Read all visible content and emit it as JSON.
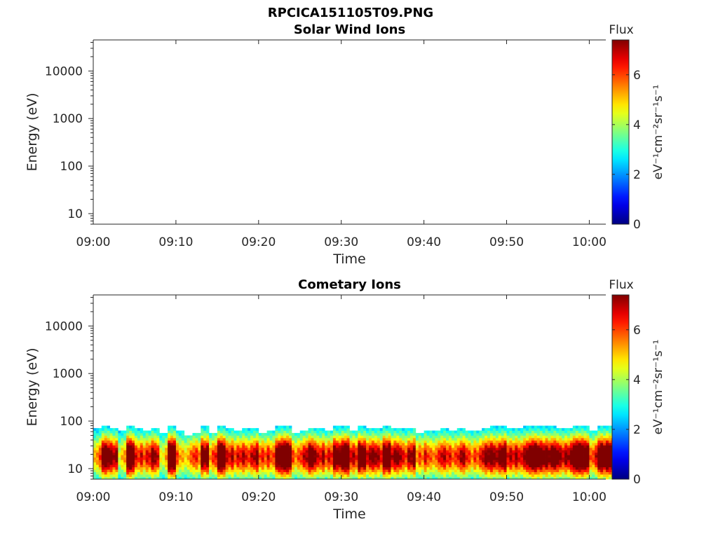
{
  "figure": {
    "title": "RPCICA151105T09.PNG"
  },
  "chart_data": [
    {
      "type": "heatmap",
      "title": "Solar Wind Ions",
      "xlabel": "Time",
      "ylabel": "Energy (eV)",
      "x_range": [
        "09:00",
        "10:02"
      ],
      "x_ticks": [
        "09:00",
        "09:10",
        "09:20",
        "09:30",
        "09:40",
        "09:50",
        "10:00"
      ],
      "y_scale": "log",
      "y_range": [
        6,
        45000
      ],
      "y_ticks": [
        {
          "value": 10,
          "label": "10"
        },
        {
          "value": 100,
          "label": "100"
        },
        {
          "value": 1000,
          "label": "1000"
        },
        {
          "value": 10000,
          "label": "10000"
        }
      ],
      "colorbar": {
        "title": "Flux",
        "label": "eV⁻¹cm⁻²sr⁻¹s⁻¹",
        "range": [
          0,
          7.4
        ],
        "ticks": [
          0,
          2,
          4,
          6
        ],
        "colormap": "jet"
      },
      "data": []
    },
    {
      "type": "heatmap",
      "title": "Cometary Ions",
      "xlabel": "Time",
      "ylabel": "Energy (eV)",
      "x_range": [
        "09:00",
        "10:02"
      ],
      "x_ticks": [
        "09:00",
        "09:10",
        "09:20",
        "09:30",
        "09:40",
        "09:50",
        "10:00"
      ],
      "y_scale": "log",
      "y_range": [
        6,
        45000
      ],
      "y_ticks": [
        {
          "value": 10,
          "label": "10"
        },
        {
          "value": 100,
          "label": "100"
        },
        {
          "value": 1000,
          "label": "1000"
        },
        {
          "value": 10000,
          "label": "10000"
        }
      ],
      "colorbar": {
        "title": "Flux",
        "label": "eV⁻¹cm⁻²sr⁻¹s⁻¹",
        "range": [
          0,
          7.4
        ],
        "ticks": [
          0,
          2,
          4,
          6
        ],
        "colormap": "jet"
      },
      "data_description_energy_band": [
        6,
        80
      ],
      "peak_energy_eV": 18,
      "peak_flux": 7,
      "intensity_by_minute": [
        0.45,
        0.85,
        0.75,
        0.35,
        0.95,
        0.6,
        0.55,
        0.7,
        0.35,
        1.0,
        0.45,
        0.4,
        0.5,
        0.85,
        0.5,
        1.0,
        0.65,
        0.55,
        0.6,
        0.7,
        0.5,
        0.55,
        0.9,
        0.95,
        0.5,
        0.6,
        0.8,
        0.65,
        0.55,
        0.85,
        1.0,
        0.6,
        0.9,
        0.7,
        0.65,
        0.95,
        0.7,
        0.6,
        0.75,
        0.45,
        0.55,
        0.5,
        0.6,
        0.55,
        0.65,
        0.5,
        0.55,
        0.7,
        0.75,
        0.85,
        0.6,
        0.65,
        0.8,
        0.9,
        0.85,
        0.8,
        0.7,
        0.75,
        1.0,
        0.95,
        0.55,
        0.9,
        1.0
      ],
      "upper_fringe_by_minute": [
        75,
        80,
        75,
        60,
        80,
        70,
        60,
        70,
        55,
        80,
        60,
        50,
        55,
        80,
        55,
        80,
        70,
        65,
        70,
        75,
        55,
        60,
        80,
        80,
        55,
        60,
        75,
        70,
        65,
        80,
        80,
        65,
        80,
        75,
        70,
        80,
        75,
        70,
        75,
        55,
        65,
        60,
        70,
        65,
        70,
        60,
        65,
        75,
        80,
        80,
        70,
        70,
        80,
        80,
        80,
        80,
        75,
        75,
        80,
        80,
        65,
        80,
        80
      ]
    }
  ]
}
